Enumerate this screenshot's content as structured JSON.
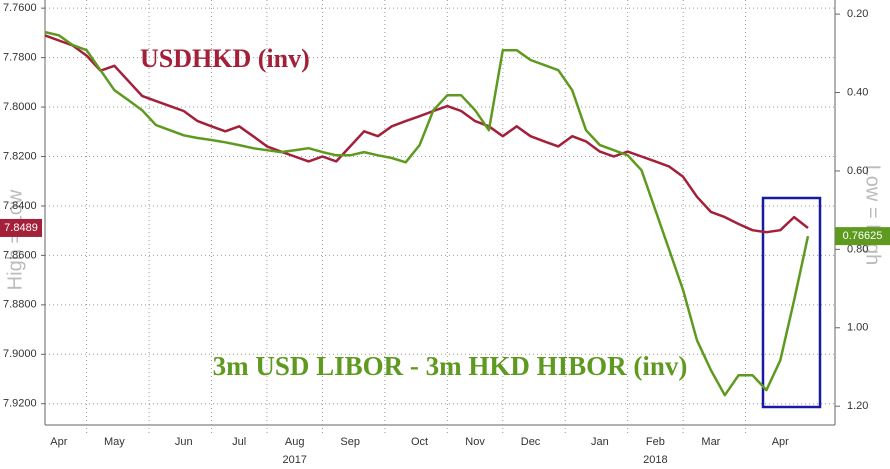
{
  "chart_data": {
    "type": "line",
    "ylabel": "High = Low",
    "y2label": "Low = High",
    "categories": [
      null,
      "Apr",
      null,
      null,
      null,
      "May",
      null,
      null,
      null,
      null,
      "Jun",
      null,
      null,
      null,
      "Jul",
      null,
      null,
      null,
      "Aug",
      null,
      null,
      null,
      "Sep",
      null,
      null,
      null,
      null,
      "Oct",
      null,
      null,
      null,
      "Nov",
      null,
      null,
      null,
      "Dec",
      null,
      null,
      null,
      null,
      "Jan",
      null,
      null,
      null,
      "Feb",
      null,
      null,
      null,
      "Mar",
      null,
      null,
      null,
      null,
      "Apr",
      null,
      null
    ],
    "year_labels": [
      null,
      null,
      null,
      null,
      null,
      null,
      null,
      null,
      null,
      null,
      null,
      null,
      null,
      null,
      null,
      null,
      null,
      null,
      "2017",
      null,
      null,
      null,
      null,
      null,
      null,
      null,
      null,
      null,
      null,
      null,
      null,
      null,
      null,
      null,
      null,
      null,
      null,
      null,
      null,
      null,
      null,
      null,
      null,
      null,
      "2018",
      null,
      null,
      null,
      null,
      null,
      null,
      null,
      null,
      null,
      null,
      null
    ],
    "series": [
      {
        "name": "USDHKD (inv)",
        "color": "#a3203a",
        "axis": "y",
        "last_value_label": "7.8489",
        "values": [
          7.771,
          7.7731,
          7.7751,
          7.7792,
          7.7853,
          7.7833,
          7.7894,
          7.7955,
          7.7976,
          7.7996,
          7.8016,
          7.8057,
          7.8078,
          7.8098,
          7.8078,
          7.8118,
          7.8159,
          7.818,
          7.82,
          7.822,
          7.82,
          7.822,
          7.8159,
          7.8098,
          7.8118,
          7.8078,
          7.8057,
          7.8037,
          7.8016,
          7.7996,
          7.8016,
          7.8057,
          7.8078,
          7.8118,
          7.8078,
          7.8118,
          7.8139,
          7.8159,
          7.8118,
          7.8139,
          7.818,
          7.82,
          7.818,
          7.82,
          7.822,
          7.8241,
          7.8282,
          7.8363,
          7.8424,
          7.8445,
          7.8473,
          7.8498,
          7.8506,
          7.8498,
          7.8445,
          7.8489
        ]
      },
      {
        "name": "3m USD LIBOR - 3m HKD HIBOR (inv)",
        "color": "#5e9a1f",
        "axis": "y2",
        "last_value_label": "0.76625",
        "values": [
          0.246,
          0.254,
          0.279,
          0.292,
          0.343,
          0.394,
          0.419,
          0.445,
          0.483,
          0.496,
          0.509,
          0.516,
          0.521,
          0.527,
          0.534,
          0.542,
          0.547,
          0.552,
          0.547,
          0.542,
          0.552,
          0.56,
          0.56,
          0.552,
          0.56,
          0.567,
          0.578,
          0.534,
          0.445,
          0.407,
          0.407,
          0.445,
          0.496,
          0.292,
          0.292,
          0.317,
          0.33,
          0.343,
          0.394,
          0.496,
          0.534,
          0.547,
          0.56,
          0.598,
          0.7,
          0.802,
          0.904,
          1.032,
          1.108,
          1.172,
          1.121,
          1.121,
          1.159,
          1.083,
          0.93,
          0.76625
        ]
      }
    ],
    "ylim": [
      7.9286,
      7.7567
    ],
    "yticks": [
      {
        "value": 7.76,
        "label": "7.7600"
      },
      {
        "value": 7.78,
        "label": "7.7800"
      },
      {
        "value": 7.8,
        "label": "7.8000"
      },
      {
        "value": 7.82,
        "label": "7.8200"
      },
      {
        "value": 7.84,
        "label": "7.8400"
      },
      {
        "value": 7.86,
        "label": "7.8600"
      },
      {
        "value": 7.88,
        "label": "7.8800"
      },
      {
        "value": 7.9,
        "label": "7.9000"
      },
      {
        "value": 7.92,
        "label": "7.9200"
      }
    ],
    "y2lim": [
      1.248,
      0.164
    ],
    "y2ticks": [
      {
        "value": 0.2,
        "label": "0.20"
      },
      {
        "value": 0.4,
        "label": "0.40"
      },
      {
        "value": 0.6,
        "label": "0.60"
      },
      {
        "value": 0.8,
        "label": "0.80"
      },
      {
        "value": 1.0,
        "label": "1.00"
      },
      {
        "value": 1.2,
        "label": "1.20"
      }
    ],
    "grid": true
  }
}
